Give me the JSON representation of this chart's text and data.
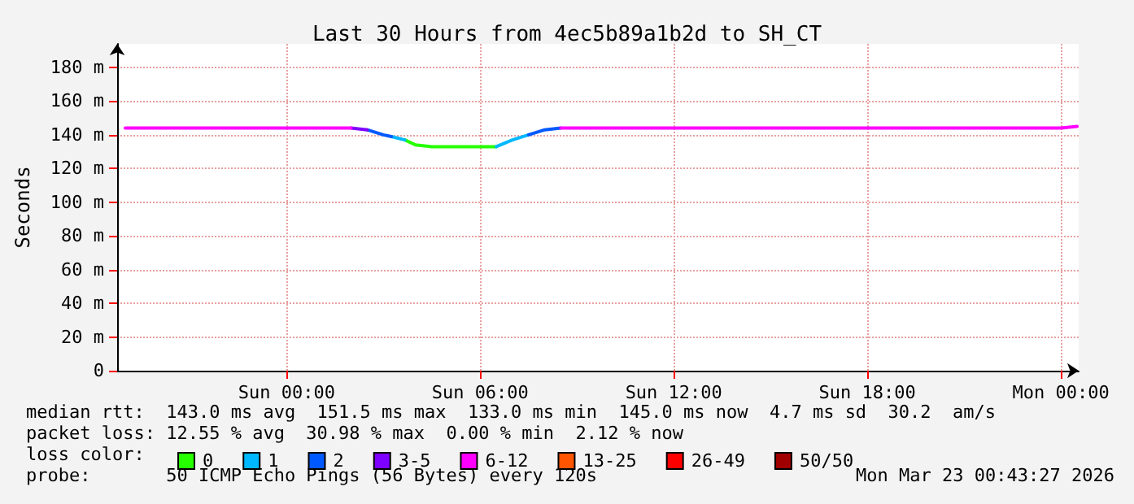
{
  "chart_data": {
    "type": "line",
    "title": "Last 30 Hours from 4ec5b89a1b2d to SH_CT",
    "ylabel": "Seconds",
    "legend_title": "loss color:",
    "legend": "bottom",
    "grid": true,
    "marker": "none",
    "line_style": "solid",
    "xlim": [
      "2026-03-21T18:45",
      "2026-03-23T00:33"
    ],
    "xticks": [
      {
        "value": "2026-03-22T00:00",
        "label": "Sun 00:00"
      },
      {
        "value": "2026-03-22T06:00",
        "label": "Sun 06:00"
      },
      {
        "value": "2026-03-22T12:00",
        "label": "Sun 12:00"
      },
      {
        "value": "2026-03-22T18:00",
        "label": "Sun 18:00"
      },
      {
        "value": "2026-03-23T00:00",
        "label": "Mon 00:00"
      }
    ],
    "ylim": [
      0,
      194
    ],
    "yticks": [
      0,
      {
        "value": 20,
        "label": "20 m"
      },
      {
        "value": 40,
        "label": "40 m"
      },
      {
        "value": 60,
        "label": "60 m"
      },
      {
        "value": 80,
        "label": "80 m"
      },
      {
        "value": 100,
        "label": "100 m"
      },
      {
        "value": 120,
        "label": "120 m"
      },
      {
        "value": 140,
        "label": "140 m"
      },
      {
        "value": 160,
        "label": "160 m"
      },
      {
        "value": 180,
        "label": "180 m"
      }
    ],
    "series": [
      {
        "name": "0",
        "color": "#26ff00",
        "x": [
          "2026-03-22T03:40",
          "2026-03-22T04:00",
          "2026-03-22T04:30",
          "2026-03-22T06:30"
        ],
        "values": [
          137,
          134,
          133,
          133
        ]
      },
      {
        "name": "1",
        "color": "#00b8ff",
        "x": [
          "2026-03-22T03:15",
          "2026-03-22T03:40"
        ],
        "values": [
          139,
          137
        ]
      },
      {
        "color": "#00b8ff",
        "x": [
          "2026-03-22T06:30",
          "2026-03-22T07:00",
          "2026-03-22T07:30"
        ],
        "values": [
          133,
          137,
          140
        ]
      },
      {
        "name": "2",
        "color": "#0059ff",
        "x": [
          "2026-03-22T02:30",
          "2026-03-22T03:00",
          "2026-03-22T03:15"
        ],
        "values": [
          143,
          140,
          139
        ]
      },
      {
        "color": "#0059ff",
        "x": [
          "2026-03-22T07:30",
          "2026-03-22T08:00",
          "2026-03-22T08:30"
        ],
        "values": [
          140,
          143,
          144
        ]
      },
      {
        "name": "3-5",
        "color": "#7e00ff",
        "x": [
          "2026-03-22T02:00",
          "2026-03-22T02:30"
        ],
        "values": [
          144,
          143
        ]
      },
      {
        "name": "6-12",
        "color": "#ff00ff",
        "x": [
          "2026-03-21T19:00",
          "2026-03-22T02:00"
        ],
        "values": [
          144,
          144
        ]
      },
      {
        "color": "#ff00ff",
        "x": [
          "2026-03-22T08:30",
          "2026-03-23T00:00",
          "2026-03-23T00:30"
        ],
        "values": [
          144,
          144,
          145
        ]
      },
      {
        "name": "13-25",
        "color": "#ff5500"
      },
      {
        "name": "26-49",
        "color": "#ff0000"
      },
      {
        "name": "50/50",
        "color": "#a10000"
      }
    ],
    "annotations": [
      "median rtt:  143.0 ms avg  151.5 ms max  133.0 ms min  145.0 ms now  4.7 ms sd  30.2  am/s",
      "packet loss: 12.55 % avg  30.98 % max  0.00 % min  2.12 % now",
      "probe:       50 ICMP Echo Pings (56 Bytes) every 120s",
      "Mon Mar 23 00:43:27 2026"
    ]
  }
}
